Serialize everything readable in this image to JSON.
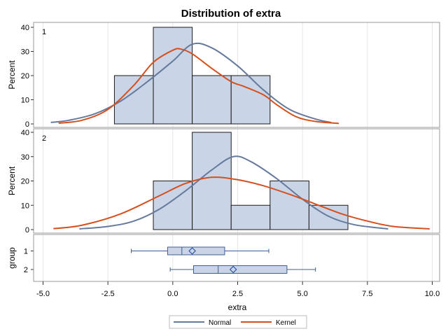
{
  "chart_data": {
    "type": "histogram",
    "title": "Distribution of extra",
    "xlabel": "extra",
    "xlim": [
      -5.0,
      10.0
    ],
    "x_ticks": [
      "-5.0",
      "-2.5",
      "0.0",
      "2.5",
      "5.0",
      "7.5",
      "10.0"
    ],
    "x_tick_values": [
      -5,
      -2.5,
      0,
      2.5,
      5,
      7.5,
      10
    ],
    "grid": true,
    "legend_position": "bottom",
    "colors": {
      "bar_fill": "#c9d4e6",
      "bar_edge": "#1a1a1a",
      "normal": "#667a9c",
      "kernel": "#d5501e",
      "grid": "#e6e6e6",
      "frame": "#999999"
    },
    "legend": [
      {
        "key": "normal",
        "label": "Normal"
      },
      {
        "key": "kernel",
        "label": "Kernel"
      }
    ],
    "panels": [
      {
        "label": "1",
        "ylabel": "Percent",
        "ylim": [
          0,
          40
        ],
        "y_ticks": [
          "0",
          "10",
          "20",
          "30",
          "40"
        ],
        "y_tick_values": [
          0,
          10,
          20,
          30,
          40
        ],
        "bins": [
          {
            "start": -2.25,
            "end": -0.75,
            "percent": 20
          },
          {
            "start": -0.75,
            "end": 0.75,
            "percent": 40
          },
          {
            "start": 0.75,
            "end": 2.25,
            "percent": 20
          },
          {
            "start": 2.25,
            "end": 3.75,
            "percent": 20
          }
        ],
        "normal_curve": [
          [
            -4.7,
            0.6
          ],
          [
            -4.0,
            1.5
          ],
          [
            -3.0,
            4.2
          ],
          [
            -2.0,
            9.5
          ],
          [
            -1.0,
            17.3
          ],
          [
            0.0,
            26.0
          ],
          [
            0.75,
            33.0
          ],
          [
            1.5,
            31.5
          ],
          [
            2.5,
            24.0
          ],
          [
            3.5,
            14.0
          ],
          [
            4.5,
            6.0
          ],
          [
            5.5,
            2.0
          ],
          [
            6.1,
            0.6
          ]
        ],
        "kernel_curve": [
          [
            -4.4,
            0.3
          ],
          [
            -3.5,
            1.5
          ],
          [
            -2.5,
            6.0
          ],
          [
            -1.5,
            16.0
          ],
          [
            -0.75,
            25.5
          ],
          [
            0.0,
            30.5
          ],
          [
            0.3,
            31.0
          ],
          [
            0.75,
            29.0
          ],
          [
            1.5,
            23.0
          ],
          [
            2.25,
            17.5
          ],
          [
            2.75,
            15.5
          ],
          [
            3.5,
            12.0
          ],
          [
            4.0,
            8.0
          ],
          [
            4.75,
            3.0
          ],
          [
            5.5,
            1.0
          ],
          [
            6.4,
            0.2
          ]
        ]
      },
      {
        "label": "2",
        "ylabel": "Percent",
        "ylim": [
          0,
          40
        ],
        "y_ticks": [
          "0",
          "10",
          "20",
          "30",
          "40"
        ],
        "y_tick_values": [
          0,
          10,
          20,
          30,
          40
        ],
        "bins": [
          {
            "start": -0.75,
            "end": 0.75,
            "percent": 20
          },
          {
            "start": 0.75,
            "end": 2.25,
            "percent": 40
          },
          {
            "start": 2.25,
            "end": 3.75,
            "percent": 10
          },
          {
            "start": 3.75,
            "end": 5.25,
            "percent": 20
          },
          {
            "start": 5.25,
            "end": 6.75,
            "percent": 10
          }
        ],
        "normal_curve": [
          [
            -3.6,
            0.3
          ],
          [
            -2.5,
            1.3
          ],
          [
            -1.5,
            3.5
          ],
          [
            -0.5,
            8.5
          ],
          [
            0.5,
            16.0
          ],
          [
            1.5,
            24.5
          ],
          [
            2.33,
            30.0
          ],
          [
            3.0,
            28.0
          ],
          [
            4.0,
            21.0
          ],
          [
            5.0,
            12.5
          ],
          [
            6.0,
            5.5
          ],
          [
            7.0,
            2.0
          ],
          [
            8.3,
            0.3
          ]
        ],
        "kernel_curve": [
          [
            -4.6,
            0.4
          ],
          [
            -3.5,
            1.8
          ],
          [
            -2.0,
            6.5
          ],
          [
            -0.5,
            14.0
          ],
          [
            0.5,
            19.0
          ],
          [
            1.5,
            21.5
          ],
          [
            2.5,
            20.5
          ],
          [
            3.5,
            18.0
          ],
          [
            4.5,
            14.5
          ],
          [
            5.5,
            10.5
          ],
          [
            6.5,
            6.5
          ],
          [
            7.5,
            3.5
          ],
          [
            8.5,
            1.3
          ],
          [
            9.9,
            0.3
          ]
        ]
      }
    ],
    "boxplot": {
      "ylabel": "group",
      "groups": [
        {
          "label": "1",
          "min": -1.6,
          "q1": -0.2,
          "median": 0.35,
          "q3": 2.0,
          "max": 3.7,
          "mean": 0.75
        },
        {
          "label": "2",
          "min": -0.1,
          "q1": 0.8,
          "median": 1.75,
          "q3": 4.4,
          "max": 5.5,
          "mean": 2.33
        }
      ]
    }
  }
}
